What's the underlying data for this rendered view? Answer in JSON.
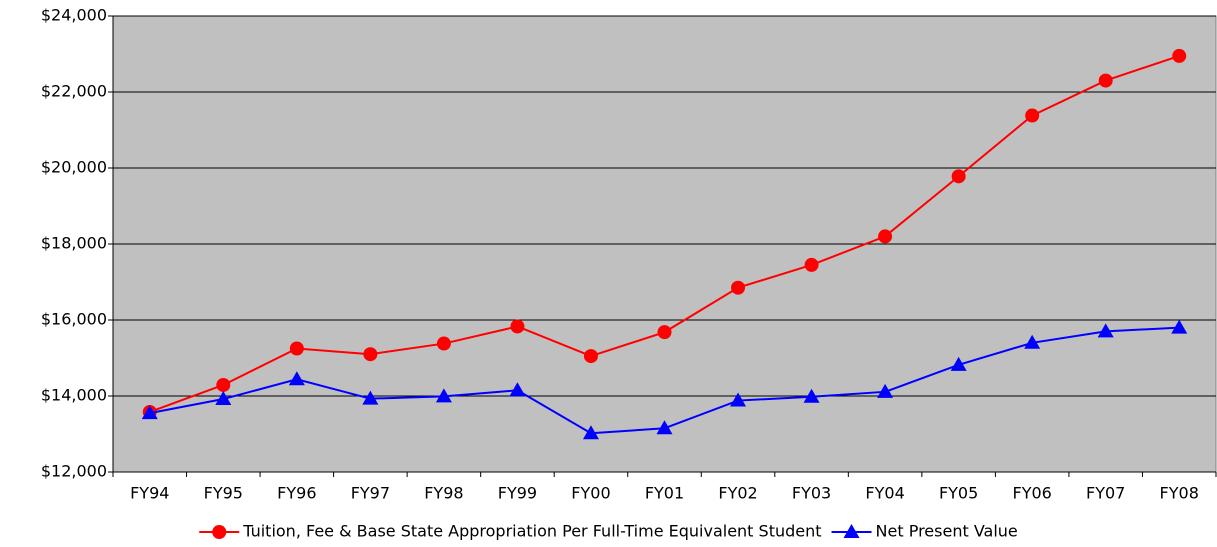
{
  "chart_data": {
    "type": "line",
    "categories": [
      "FY94",
      "FY95",
      "FY96",
      "FY97",
      "FY98",
      "FY99",
      "FY00",
      "FY01",
      "FY02",
      "FY03",
      "FY04",
      "FY05",
      "FY06",
      "FY07",
      "FY08"
    ],
    "series": [
      {
        "name": "Tuition, Fee & Base State  Appropriation Per Full-Time Equivalent Student",
        "color": "#ff0000",
        "marker": "circle",
        "values": [
          13580,
          14290,
          15250,
          15100,
          15380,
          15830,
          15050,
          15680,
          16850,
          17450,
          18200,
          19780,
          21380,
          22300,
          22950
        ]
      },
      {
        "name": "Net Present Value",
        "color": "#0000ff",
        "marker": "triangle",
        "values": [
          13550,
          13920,
          14440,
          13930,
          13990,
          14150,
          13020,
          13150,
          13880,
          13980,
          14110,
          14820,
          15400,
          15700,
          15800
        ]
      }
    ],
    "ylim": [
      12000,
      24000
    ],
    "yticks": [
      {
        "value": 12000,
        "label": "$12,000"
      },
      {
        "value": 14000,
        "label": "$14,000"
      },
      {
        "value": 16000,
        "label": "$16,000"
      },
      {
        "value": 18000,
        "label": "$18,000"
      },
      {
        "value": 20000,
        "label": "$20,000"
      },
      {
        "value": 22000,
        "label": "$22,000"
      },
      {
        "value": 24000,
        "label": "$24,000"
      }
    ],
    "grid": true,
    "plot_background": "#c0c0c0",
    "legend": "bottom"
  }
}
